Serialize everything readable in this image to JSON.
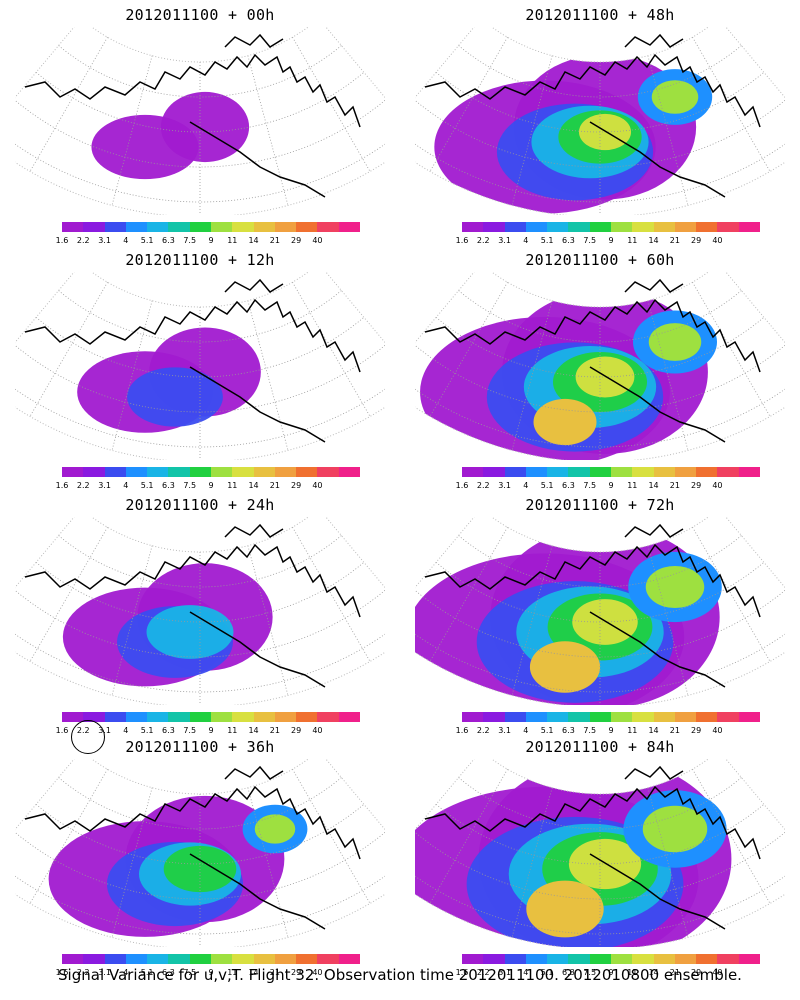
{
  "colorbar": {
    "colors": [
      "#a11ad0",
      "#8a1ae0",
      "#3b4cf0",
      "#1e90ff",
      "#19b4e6",
      "#12c4a8",
      "#20d040",
      "#9ee040",
      "#d8e040",
      "#e8c040",
      "#f0a040",
      "#f07030",
      "#f04060",
      "#f0208a"
    ],
    "labels": [
      "1.6",
      "2.2",
      "3.1",
      "4",
      "5.1",
      "6.3",
      "7.5",
      "9",
      "11",
      "14",
      "21",
      "29",
      "40"
    ]
  },
  "panels": [
    {
      "title": "2012011100 + 00h",
      "level": 0
    },
    {
      "title": "2012011100 + 48h",
      "level": 4
    },
    {
      "title": "2012011100 + 12h",
      "level": 1
    },
    {
      "title": "2012011100 + 60h",
      "level": 5
    },
    {
      "title": "2012011100 + 24h",
      "level": 2
    },
    {
      "title": "2012011100 + 72h",
      "level": 6
    },
    {
      "title": "2012011100 + 36h",
      "level": 3
    },
    {
      "title": "2012011100 + 84h",
      "level": 7
    }
  ],
  "caption": "Signal Variance for u,v,T. Flight 32. Observation time 2012011100. 2012010800 ensemble."
}
